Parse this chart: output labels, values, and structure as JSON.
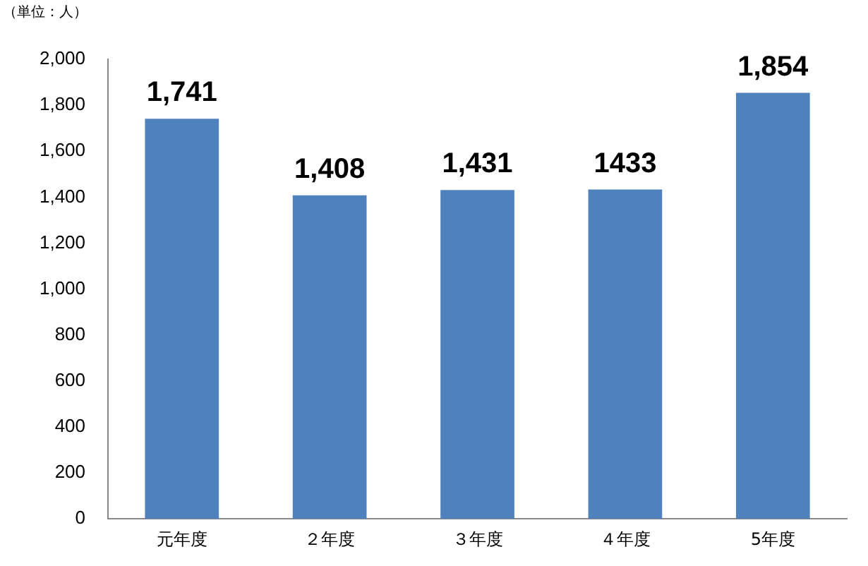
{
  "chart_data": {
    "type": "bar",
    "ylabel": "（単位：人）",
    "categories": [
      "元年度",
      "２年度",
      "３年度",
      "４年度",
      "5年度"
    ],
    "values": [
      1741,
      1408,
      1431,
      1433,
      1854
    ],
    "value_labels": [
      "1,741",
      "1,408",
      "1,431",
      "1433",
      "1,854"
    ],
    "color": "#4f81bd",
    "ylim": [
      0,
      2000
    ],
    "yticks": [
      0,
      200,
      400,
      600,
      800,
      {
        "value": 1000,
        "label": "1,000"
      },
      {
        "value": 1200,
        "label": "1,200"
      },
      {
        "value": 1400,
        "label": "1,400"
      },
      {
        "value": 1600,
        "label": "1,600"
      },
      {
        "value": 1800,
        "label": "1,800"
      },
      {
        "value": 2000,
        "label": "2,000"
      }
    ],
    "grid": false,
    "legend": false
  }
}
